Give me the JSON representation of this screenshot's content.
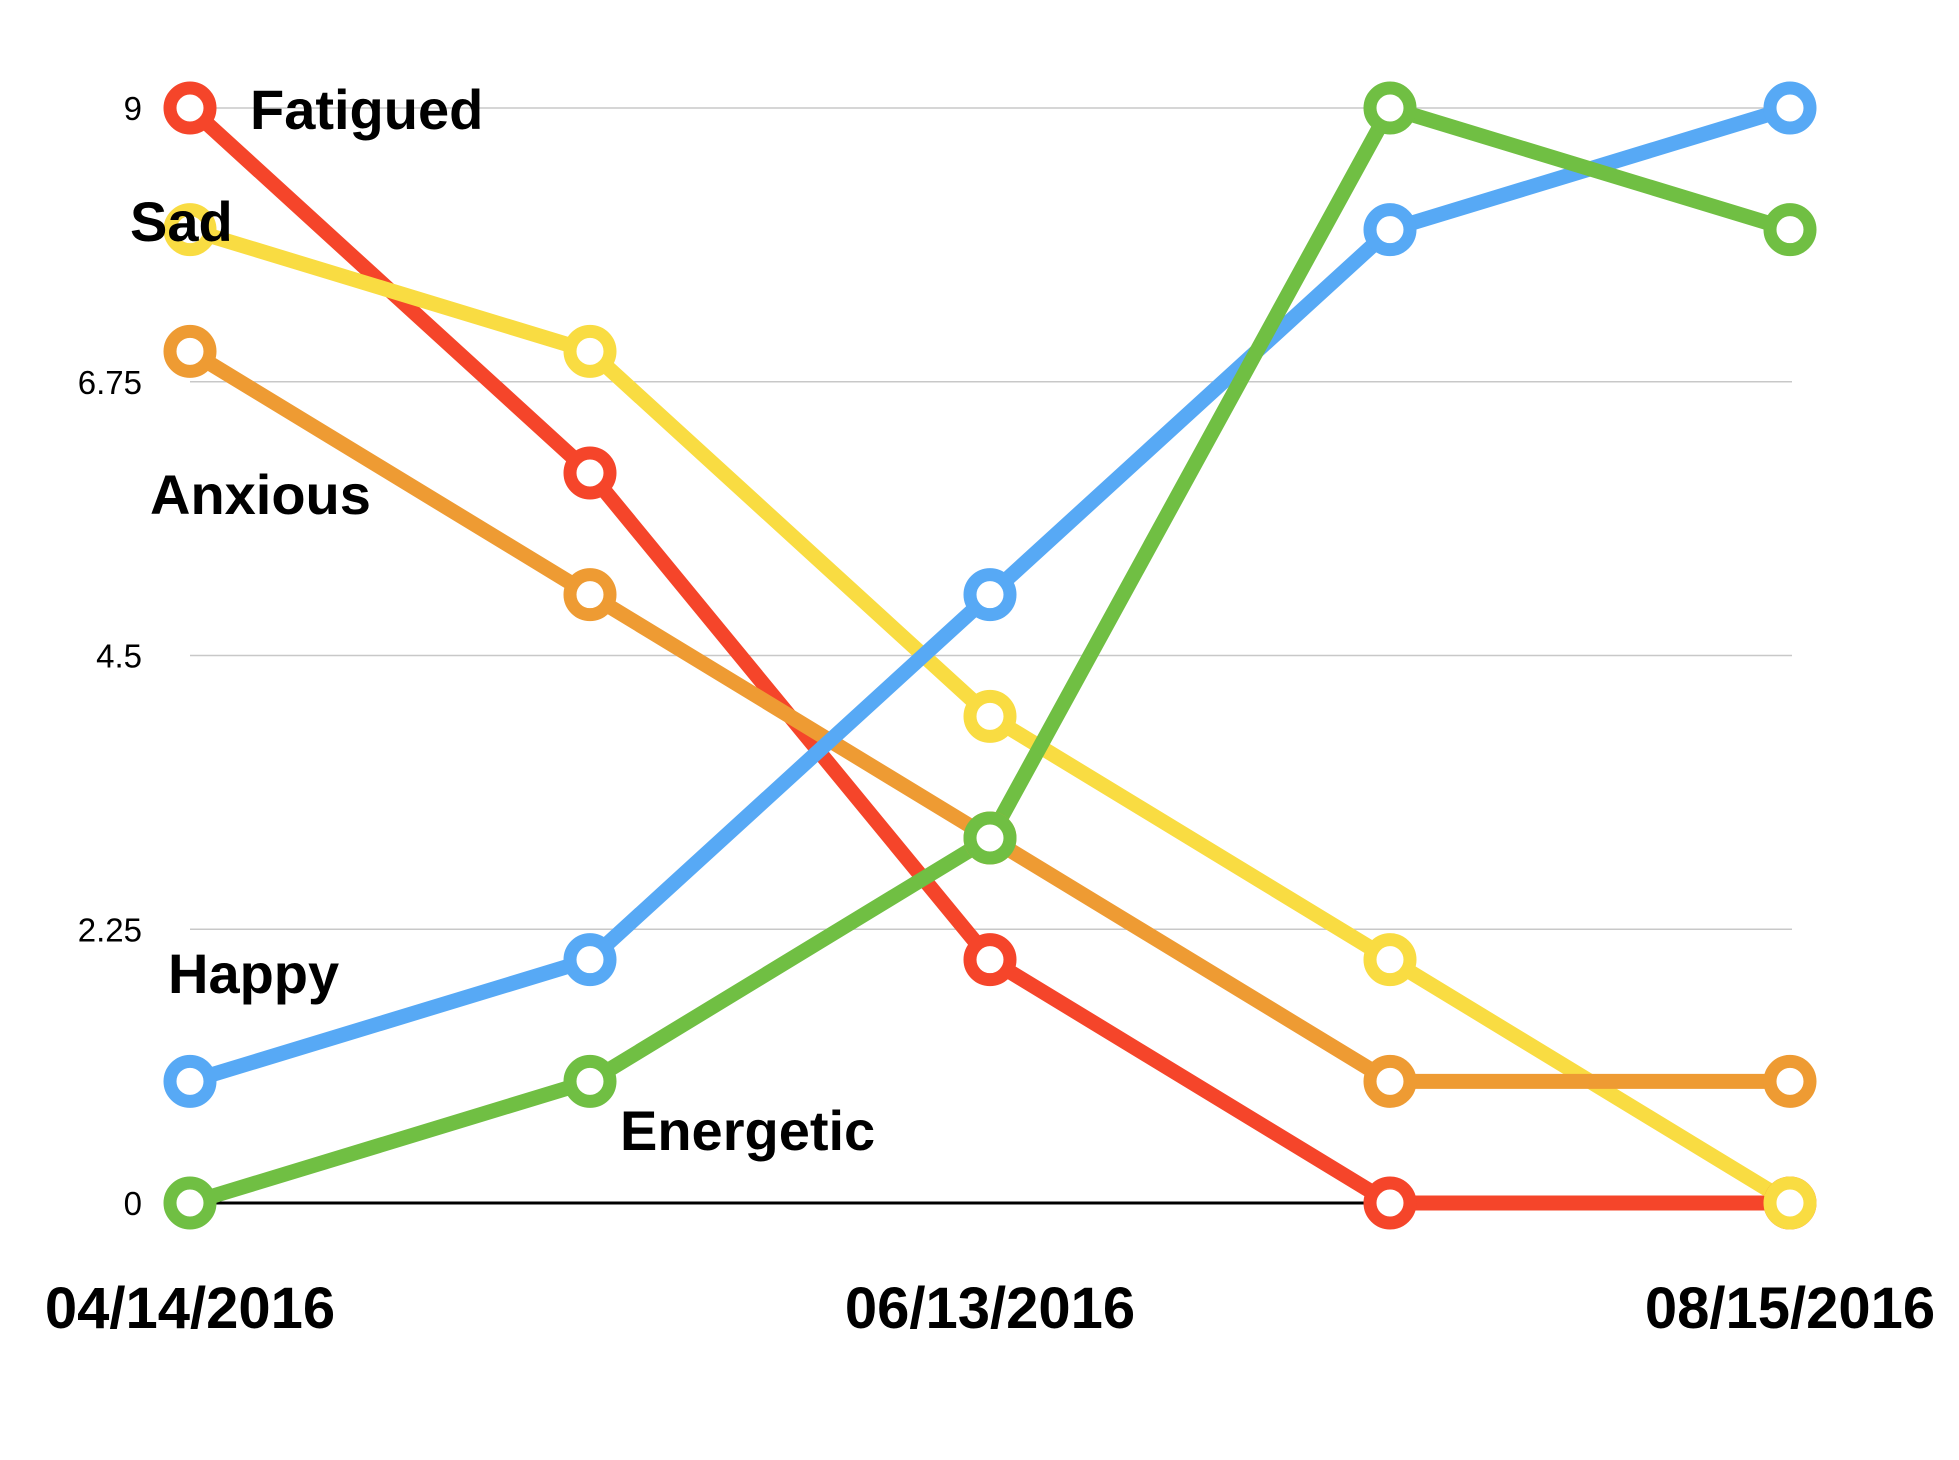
{
  "chart_data": {
    "type": "line",
    "x": [
      "04/14/2016",
      "",
      "06/13/2016",
      "",
      "08/15/2016"
    ],
    "x_tick_labels": [
      "04/14/2016",
      "06/13/2016",
      "08/15/2016"
    ],
    "y_ticks": [
      "0",
      "2.25",
      "4.5",
      "6.75",
      "9"
    ],
    "ylim": [
      0,
      9
    ],
    "grid": true,
    "series": [
      {
        "name": "Fatigued",
        "color": "#F5452A",
        "values": [
          9,
          6,
          2,
          0,
          0
        ]
      },
      {
        "name": "Sad",
        "color": "#F9DC42",
        "values": [
          8,
          7,
          4,
          2,
          0
        ]
      },
      {
        "name": "Anxious",
        "color": "#EE9B33",
        "values": [
          7,
          5,
          3,
          1,
          1
        ]
      },
      {
        "name": "Happy",
        "color": "#57A9F5",
        "values": [
          1,
          2,
          5,
          8,
          9
        ]
      },
      {
        "name": "Energetic",
        "color": "#70BF43",
        "values": [
          0,
          1,
          3,
          9,
          8
        ]
      }
    ]
  }
}
